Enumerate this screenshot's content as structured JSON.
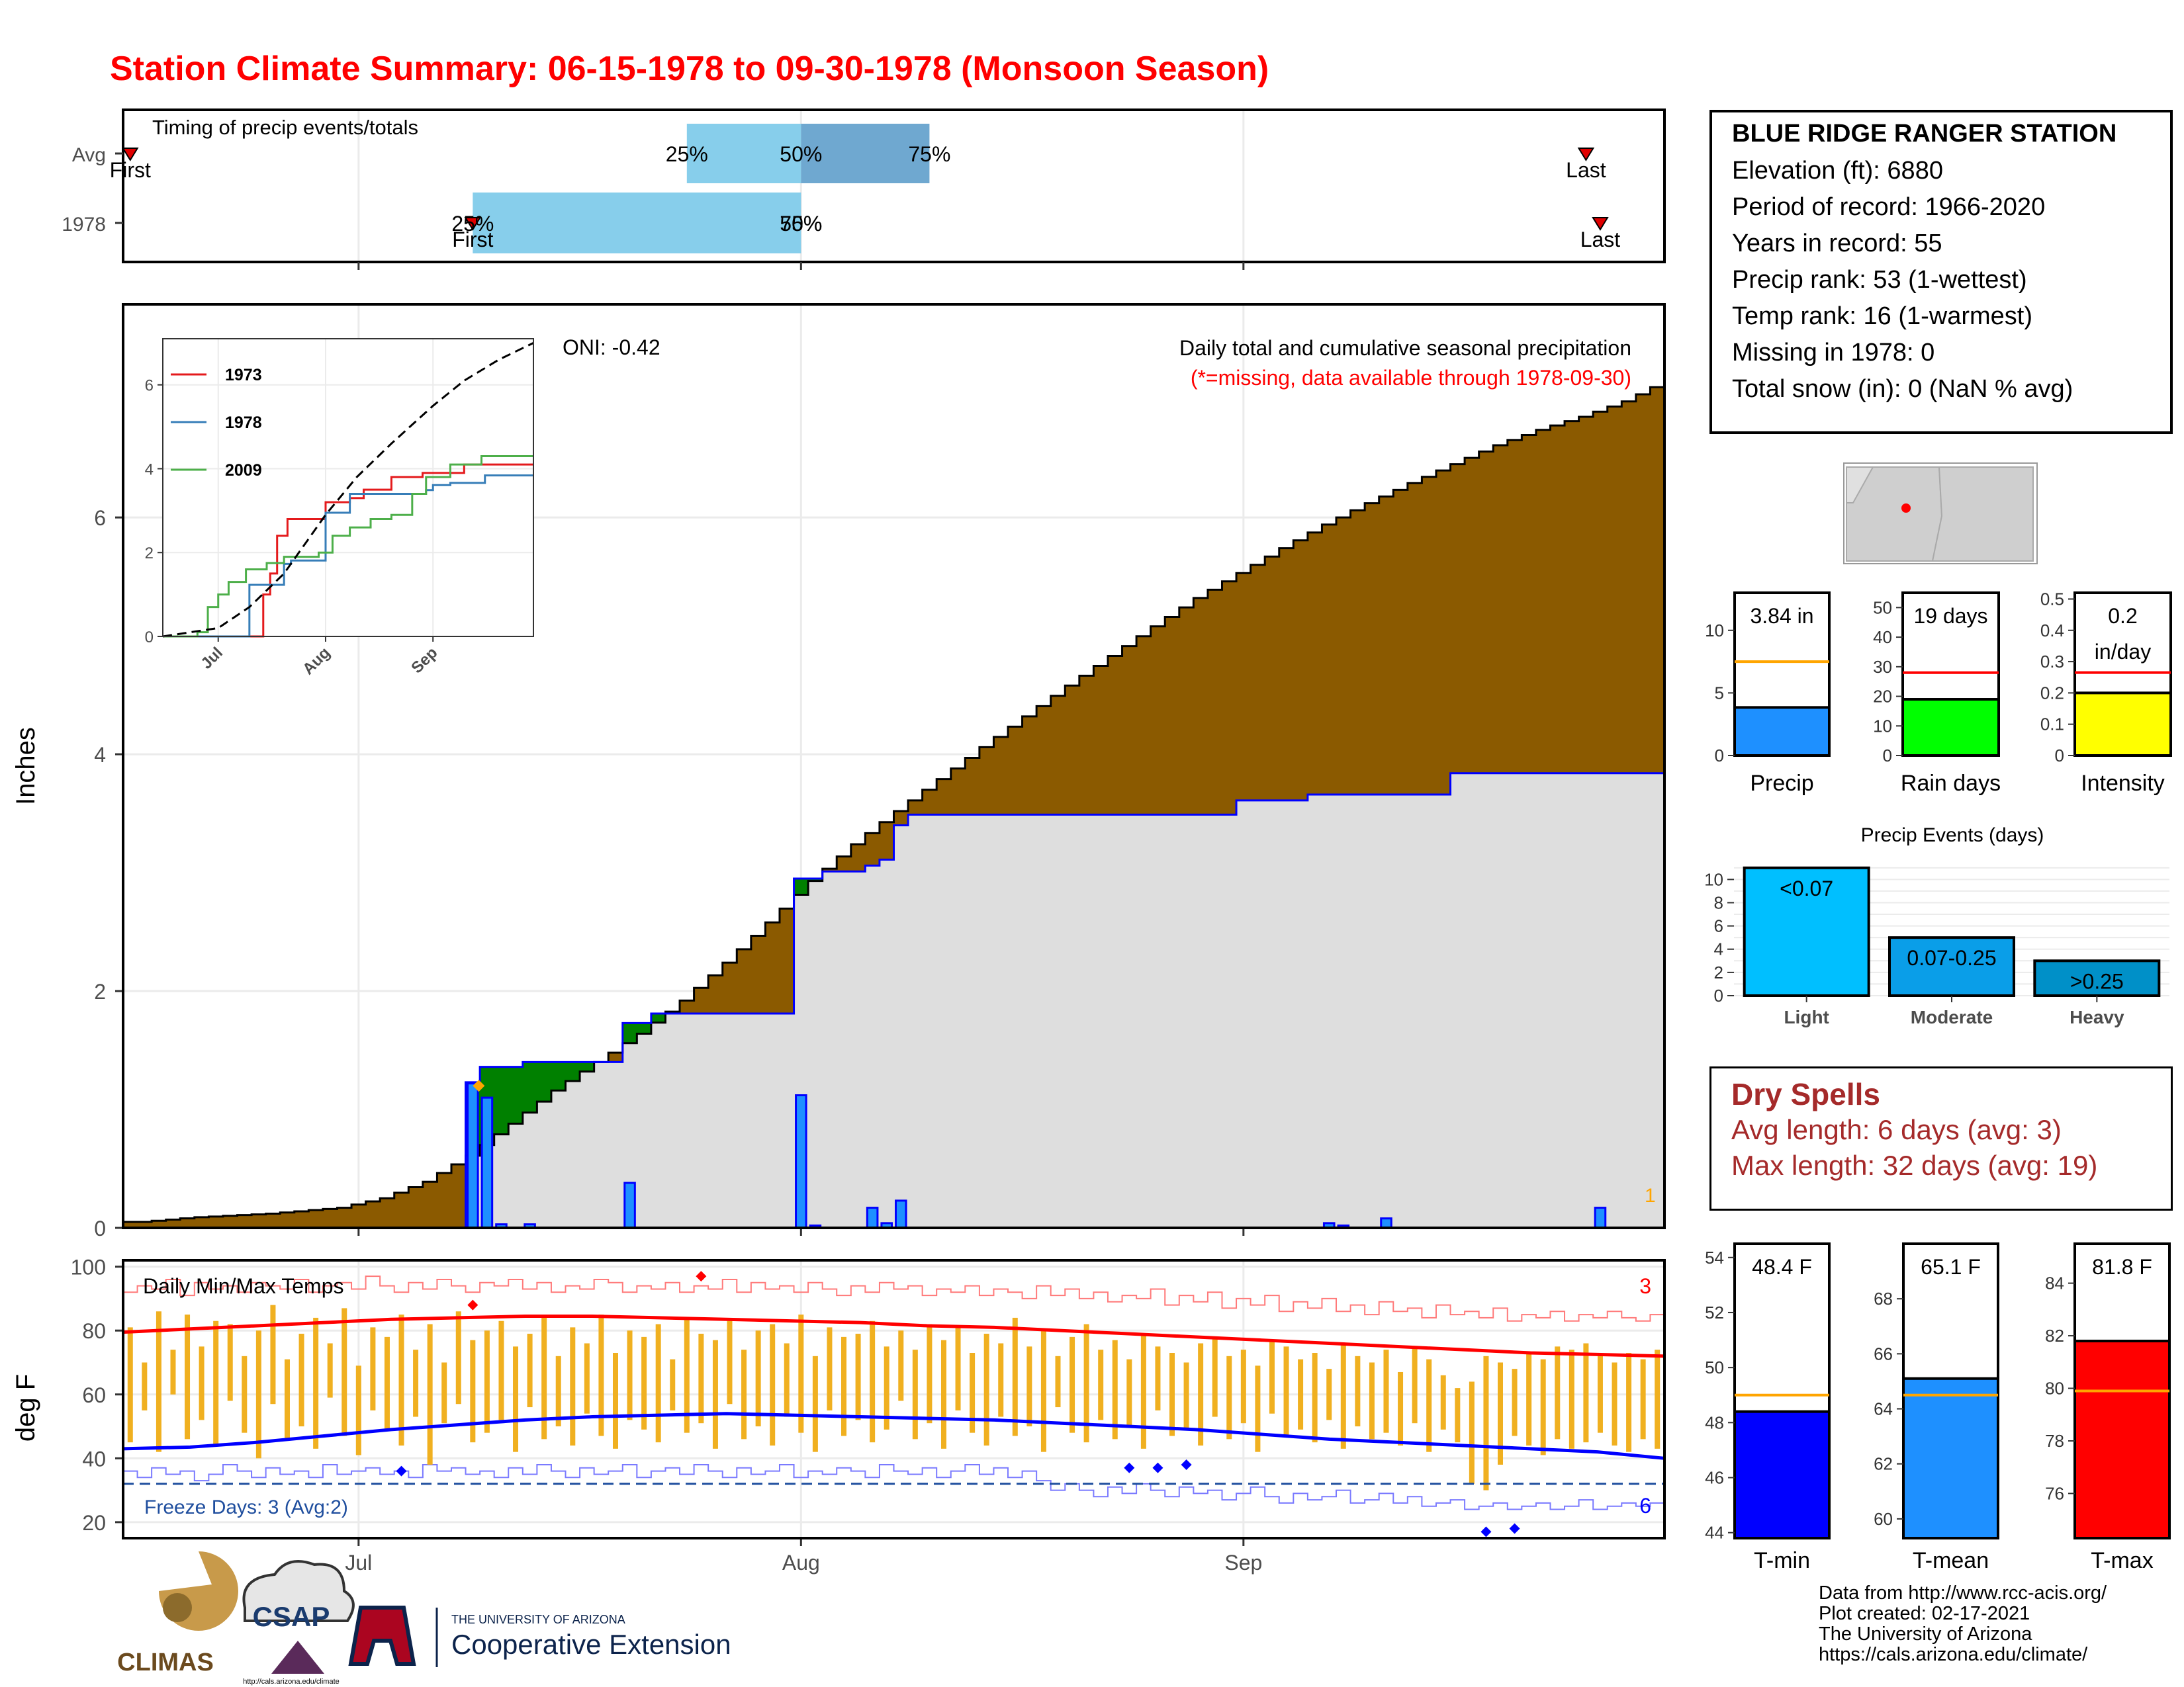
{
  "title": "Station Climate Summary: 06-15-1978 to 09-30-1978 (Monsoon Season)",
  "colors": {
    "title": "#ff0000",
    "brown": "#8b5a00",
    "green": "#008000",
    "blue_bar": "#1e90ff",
    "sky": "#87ceeb",
    "steel": "#6fa8d0",
    "dry_spell": "#a52a2a",
    "light": "#00bfff",
    "moderate": "#0a9ee8",
    "heavy": "#0090c8"
  },
  "station": {
    "name": "BLUE RIDGE RANGER STATION",
    "elevation": "Elevation (ft): 6880",
    "period": "Period of record: 1966-2020",
    "years": "Years in record: 55",
    "precip_rank": "Precip rank: 53 (1-wettest)",
    "temp_rank": "Temp rank: 16 (1-warmest)",
    "missing": "Missing in 1978: 0",
    "snow": "Total snow (in): 0 (NaN % avg)"
  },
  "dry_spells": {
    "heading": "Dry Spells",
    "avg": "Avg length: 6 days (avg: 3)",
    "max": "Max length: 32 days (avg: 19)"
  },
  "credits": [
    "Data from http://www.rcc-acis.org/",
    "Plot created: 02-17-2021",
    "The University of Arizona",
    "https://cals.arizona.edu/climate/"
  ],
  "logos": {
    "climas": "CLIMAS",
    "csap": "CSAP",
    "csap_url": "http://cals.arizona.edu/climate",
    "ua_small": "THE UNIVERSITY OF ARIZONA",
    "ua_big": "Cooperative Extension"
  },
  "icons": {
    "map": "arizona-locator-map",
    "marker": "red-triangle-marker"
  },
  "chart_data": [
    {
      "type": "bar",
      "panel": "timing",
      "title": "Timing of precip events/totals",
      "categories": [
        "Avg",
        "1978"
      ],
      "x_ticks": [
        "Jul",
        "Aug",
        "Sep"
      ],
      "rows": [
        {
          "label": "Avg",
          "first": "06-15",
          "q25": "07-24",
          "q50": "08-01",
          "q75": "08-10",
          "last": "09-25",
          "labels": [
            "First",
            "25%",
            "50%",
            "75%",
            "Last"
          ]
        },
        {
          "label": "1978",
          "first": "07-09",
          "q25": "07-09",
          "q50": "08-01",
          "q75": "08-01",
          "last": "09-26",
          "labels": [
            "First",
            "25%",
            "50%",
            "75%",
            "Last"
          ]
        }
      ]
    },
    {
      "type": "area",
      "panel": "precipitation",
      "title": "Daily total and cumulative seasonal precipitation",
      "subtitle": "(*=missing, data available through 1978-09-30)",
      "annotation": "ONI: -0.42",
      "corner_count": "1",
      "ylabel": "Inches",
      "ylim": [
        0,
        7.8
      ],
      "y_ticks": [
        0,
        2,
        4,
        6
      ],
      "x_ticks": [
        "Jul",
        "Aug",
        "Sep"
      ],
      "avg_cumulative": {
        "x": [
          "06-16",
          "06-20",
          "06-25",
          "06-30",
          "07-03",
          "07-06",
          "07-09",
          "07-12",
          "07-15",
          "07-18",
          "07-21",
          "07-24",
          "07-27",
          "07-30",
          "08-02",
          "08-05",
          "08-08",
          "08-11",
          "08-14",
          "08-17",
          "08-20",
          "08-23",
          "08-26",
          "08-29",
          "09-01",
          "09-04",
          "09-07",
          "09-10",
          "09-13",
          "09-16",
          "09-19",
          "09-22",
          "09-25",
          "09-28",
          "09-30"
        ],
        "y": [
          0.05,
          0.09,
          0.12,
          0.17,
          0.25,
          0.39,
          0.61,
          0.88,
          1.16,
          1.4,
          1.64,
          1.92,
          2.24,
          2.58,
          2.93,
          3.24,
          3.52,
          3.79,
          4.06,
          4.32,
          4.58,
          4.83,
          5.08,
          5.32,
          5.53,
          5.74,
          5.94,
          6.12,
          6.29,
          6.45,
          6.61,
          6.74,
          6.85,
          6.98,
          7.1
        ]
      },
      "cumulative_1978": {
        "x": [
          "06-15",
          "07-08",
          "07-09",
          "07-10",
          "07-13",
          "07-20",
          "07-22",
          "07-31",
          "08-01",
          "08-03",
          "08-06",
          "08-07",
          "08-08",
          "08-09",
          "08-30",
          "09-01",
          "09-06",
          "09-16",
          "09-30"
        ],
        "y": [
          0,
          0,
          1.23,
          1.36,
          1.4,
          1.73,
          1.81,
          1.81,
          2.95,
          3.01,
          3.06,
          3.11,
          3.4,
          3.49,
          3.49,
          3.61,
          3.66,
          3.84,
          3.84
        ]
      },
      "daily_1978": {
        "x": [
          "07-09",
          "07-10",
          "07-11",
          "07-13",
          "07-20",
          "08-01",
          "08-02",
          "08-06",
          "08-07",
          "08-08",
          "09-07",
          "09-08",
          "09-11",
          "09-26"
        ],
        "y": [
          1.22,
          1.1,
          0.03,
          0.03,
          0.38,
          1.12,
          0.02,
          0.17,
          0.04,
          0.23,
          0.04,
          0.02,
          0.08,
          0.17
        ]
      }
    },
    {
      "type": "line",
      "panel": "inset",
      "series": [
        {
          "name": "1973",
          "color": "#e41a1c",
          "x": [
            "06-15",
            "07-12",
            "07-14",
            "07-16",
            "07-18",
            "07-21",
            "07-24",
            "08-01",
            "08-04",
            "08-08",
            "08-12",
            "08-20",
            "08-29",
            "09-10",
            "09-30"
          ],
          "y": [
            0,
            0,
            1.0,
            1.5,
            2.4,
            2.8,
            2.8,
            3.2,
            3.2,
            3.3,
            3.5,
            3.8,
            3.9,
            4.1,
            4.1
          ]
        },
        {
          "name": "1978",
          "color": "#377eb8",
          "x": [
            "06-15",
            "07-09",
            "07-10",
            "07-20",
            "07-22",
            "08-01",
            "08-08",
            "08-30",
            "09-01",
            "09-06",
            "09-16",
            "09-30"
          ],
          "y": [
            0,
            0,
            1.23,
            1.73,
            1.81,
            2.95,
            3.4,
            3.49,
            3.61,
            3.66,
            3.84,
            3.84
          ]
        },
        {
          "name": "2009",
          "color": "#4daf4a",
          "x": [
            "06-15",
            "06-25",
            "06-28",
            "07-01",
            "07-04",
            "07-09",
            "07-15",
            "07-20",
            "07-30",
            "08-03",
            "08-08",
            "08-14",
            "08-20",
            "08-26",
            "08-30",
            "09-06",
            "09-15",
            "09-30"
          ],
          "y": [
            0,
            0.1,
            0.7,
            1.0,
            1.3,
            1.6,
            1.75,
            1.9,
            2.0,
            2.4,
            2.6,
            2.8,
            2.9,
            3.4,
            3.8,
            4.1,
            4.3,
            4.3
          ]
        },
        {
          "name": "avg",
          "x": [
            "06-15",
            "07-01",
            "07-10",
            "07-20",
            "08-01",
            "08-10",
            "08-20",
            "09-01",
            "09-10",
            "09-20",
            "09-30"
          ],
          "y": [
            0,
            0.2,
            0.7,
            1.5,
            2.9,
            3.8,
            4.6,
            5.5,
            6.1,
            6.6,
            7.0
          ]
        }
      ],
      "y_ticks": [
        0,
        2,
        4,
        6
      ],
      "x_ticks": [
        "Jul",
        "Aug",
        "Sep"
      ]
    },
    {
      "type": "line",
      "panel": "temperature",
      "title": "Daily Min/Max Temps",
      "ylabel": "deg F",
      "ylim": [
        15,
        102
      ],
      "y_ticks": [
        20,
        40,
        60,
        80,
        100
      ],
      "x_ticks": [
        "Jul",
        "Aug",
        "Sep"
      ],
      "freeze_days": "Freeze Days: 3 (Avg:2)",
      "freeze_line": 32,
      "count_high": "3",
      "count_low": "6",
      "avg_max": [
        79.5,
        80.5,
        81.5,
        82.5,
        83.5,
        84,
        84.5,
        84.5,
        84,
        83.5,
        83,
        82.5,
        81.5,
        81,
        80,
        79,
        78,
        77,
        76,
        75,
        74,
        73,
        72.5,
        72
      ],
      "avg_min": [
        43,
        43.5,
        45,
        47,
        49,
        50.5,
        52,
        53,
        53.5,
        54,
        53.5,
        53,
        52.5,
        52,
        51,
        50,
        49,
        47.5,
        46,
        45,
        44,
        43,
        42,
        40
      ],
      "hi_1978": [
        81,
        70,
        86,
        74,
        85,
        75,
        83,
        82,
        72,
        80,
        88,
        71,
        79,
        84,
        76,
        87,
        69,
        81,
        78,
        85,
        74,
        82,
        70,
        86,
        77,
        80,
        83,
        75,
        79,
        84,
        72,
        81,
        76,
        85,
        73,
        80,
        78,
        82,
        71,
        84,
        79,
        77,
        83,
        74,
        80,
        82,
        76,
        85,
        72,
        81,
        78,
        79,
        83,
        75,
        80,
        74,
        82,
        77,
        81,
        73,
        79,
        76,
        84,
        75,
        80,
        72,
        78,
        82,
        74,
        77,
        71,
        79,
        75,
        73,
        70,
        76,
        78,
        72,
        74,
        69,
        77,
        75,
        71,
        73,
        68,
        76,
        72,
        70,
        74,
        67,
        75,
        71,
        66,
        62,
        64,
        72,
        70,
        68,
        73,
        71,
        75,
        74,
        76,
        72,
        70,
        73,
        71,
        74
      ],
      "lo_1978": [
        45,
        55,
        42,
        60,
        46,
        52,
        44,
        58,
        48,
        40,
        57,
        46,
        50,
        43,
        59,
        47,
        41,
        55,
        49,
        44,
        53,
        38,
        51,
        57,
        45,
        48,
        52,
        42,
        56,
        46,
        50,
        44,
        54,
        47,
        43,
        52,
        49,
        45,
        55,
        48,
        51,
        43,
        57,
        46,
        50,
        44,
        53,
        48,
        42,
        55,
        47,
        52,
        45,
        49,
        58,
        46,
        51,
        43,
        55,
        48,
        44,
        53,
        47,
        50,
        42,
        56,
        48,
        45,
        52,
        46,
        50,
        43,
        55,
        47,
        49,
        44,
        53,
        46,
        51,
        42,
        54,
        47,
        49,
        45,
        52,
        43,
        50,
        46,
        48,
        44,
        51,
        42,
        49,
        45,
        32,
        30,
        38,
        47,
        44,
        41,
        46,
        43,
        45,
        48,
        44,
        42,
        46,
        43
      ],
      "record_hi": [
        92,
        94,
        93,
        96,
        91,
        95,
        93,
        94,
        92,
        95,
        94,
        93,
        96,
        92,
        94,
        95,
        93,
        97,
        94,
        92,
        95,
        93,
        96,
        94,
        92,
        95,
        94,
        96,
        93,
        95,
        92,
        94,
        93,
        96,
        95,
        92,
        94,
        93,
        95,
        92,
        94,
        93,
        96,
        92,
        95,
        93,
        94,
        92,
        95,
        93,
        91,
        94,
        92,
        95,
        93,
        94,
        91,
        93,
        92,
        94,
        91,
        93,
        92,
        90,
        94,
        91,
        93,
        90,
        92,
        89,
        91,
        90,
        93,
        88,
        91,
        89,
        92,
        87,
        90,
        88,
        91,
        86,
        89,
        87,
        90,
        86,
        88,
        85,
        89,
        86,
        87,
        84,
        88,
        85,
        86,
        84,
        87,
        83,
        85,
        84,
        86,
        83,
        85,
        84,
        86,
        84,
        83,
        85
      ],
      "record_lo": [
        36,
        34,
        37,
        35,
        36,
        33,
        35,
        38,
        36,
        34,
        37,
        35,
        36,
        34,
        38,
        35,
        36,
        37,
        35,
        36,
        34,
        38,
        36,
        37,
        35,
        36,
        34,
        37,
        35,
        38,
        36,
        34,
        37,
        35,
        36,
        38,
        34,
        36,
        37,
        35,
        38,
        36,
        34,
        37,
        35,
        36,
        38,
        34,
        36,
        35,
        37,
        36,
        34,
        38,
        36,
        35,
        37,
        34,
        36,
        38,
        35,
        37,
        34,
        36,
        33,
        30,
        32,
        30,
        28,
        31,
        29,
        32,
        30,
        28,
        31,
        29,
        30,
        27,
        29,
        31,
        28,
        26,
        29,
        27,
        28,
        30,
        26,
        27,
        29,
        26,
        28,
        25,
        26,
        27,
        24,
        25,
        26,
        24,
        25,
        26,
        24,
        25,
        27,
        24,
        25,
        26,
        25,
        26
      ]
    },
    {
      "type": "bar",
      "panel": "gauges",
      "gauges": [
        {
          "label": "Precip",
          "value_text": "3.84 in",
          "value": 3.84,
          "avg": 7.5,
          "ylim": [
            0,
            13
          ],
          "ticks": [
            0,
            5,
            10
          ],
          "color": "#1e90ff"
        },
        {
          "label": "Rain days",
          "value_text": "19 days",
          "value": 19,
          "avg": 28,
          "ylim": [
            0,
            55
          ],
          "ticks": [
            0,
            10,
            20,
            30,
            40,
            50
          ],
          "color": "#00ff00"
        },
        {
          "label": "Intensity",
          "value_text": "0.2 in/day",
          "value_line1": "0.2",
          "value_line2": "in/day",
          "value": 0.2,
          "avg": 0.265,
          "ylim": [
            0,
            0.52
          ],
          "ticks": [
            0.0,
            0.1,
            0.2,
            0.3,
            0.4,
            0.5
          ],
          "color": "#ffff00"
        }
      ]
    },
    {
      "type": "bar",
      "panel": "precip_events",
      "title": "Precip Events (days)",
      "categories": [
        "Light",
        "Moderate",
        "Heavy"
      ],
      "bar_labels": [
        "<0.07",
        "0.07-0.25",
        ">0.25"
      ],
      "values": [
        11,
        5,
        3
      ],
      "ylim": [
        0,
        11.5
      ],
      "y_ticks": [
        0,
        2,
        4,
        6,
        8,
        10
      ]
    },
    {
      "type": "bar",
      "panel": "temp_gauges",
      "gauges": [
        {
          "label": "T-min",
          "value_text": "48.4 F",
          "value": 48.4,
          "avg": 49.0,
          "ylim": [
            43.8,
            54.5
          ],
          "ticks": [
            44,
            46,
            48,
            50,
            52,
            54
          ],
          "color": "#0000ff"
        },
        {
          "label": "T-mean",
          "value_text": "65.1 F",
          "value": 65.1,
          "avg": 64.5,
          "ylim": [
            59.3,
            70
          ],
          "ticks": [
            60,
            62,
            64,
            66,
            68
          ],
          "color": "#1e90ff"
        },
        {
          "label": "T-max",
          "value_text": "81.8 F",
          "value": 81.8,
          "avg": 79.9,
          "ylim": [
            74.3,
            85.5
          ],
          "ticks": [
            76,
            78,
            80,
            82,
            84
          ],
          "color": "#ff0000"
        }
      ]
    }
  ]
}
